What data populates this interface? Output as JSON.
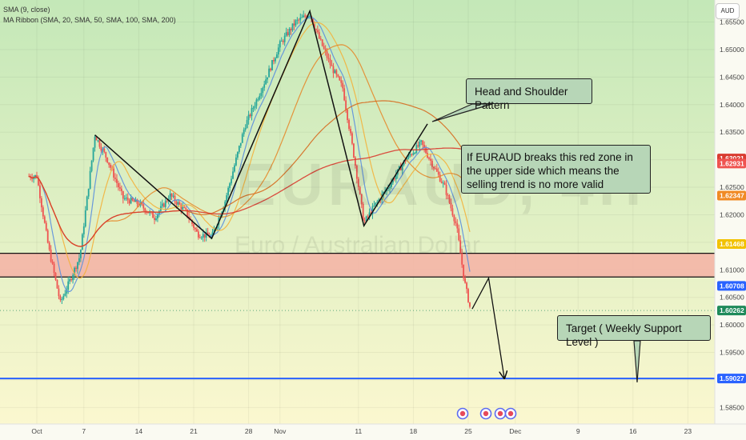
{
  "legend": {
    "sma": "SMA (9, close)",
    "ribbon": "MA Ribbon (SMA, 20, SMA, 50, SMA, 100, SMA, 200)"
  },
  "currency": "AUD",
  "watermark": {
    "symbol": "EURAUD, 4H",
    "name": "Euro / Australian Dollar"
  },
  "annotations": {
    "pattern": "Head and Shoulder Pattern",
    "note": "If EURAUD breaks this red zone in the upper side which means the selling trend is no more valid",
    "target": "Target ( Weekly Support Level )"
  },
  "colors": {
    "background_top": "#c4e8b8",
    "background_bottom": "#fdf8d0",
    "bull": "#26a69a",
    "bear": "#ef5350",
    "zone": "#f4b5a6",
    "support": "#2962ff",
    "sma9": "#5b8fde",
    "ma20": "#f3b13c",
    "ma50": "#e58a2c",
    "ma100": "#d66a1f",
    "ma200": "#d93b30"
  },
  "chart_data": {
    "type": "candlestick",
    "symbol": "EURAUD",
    "timeframe": "4H",
    "y_range": [
      1.582,
      1.659
    ],
    "y_ticks": [
      "1.65500",
      "1.65000",
      "1.64500",
      "1.64000",
      "1.63500",
      "1.63000",
      "1.62500",
      "1.62000",
      "1.61500",
      "1.61000",
      "1.60500",
      "1.60000",
      "1.59500",
      "1.59000",
      "1.58500"
    ],
    "x_ticks": [
      {
        "label": "Oct",
        "day": 1
      },
      {
        "label": "7",
        "day": 7
      },
      {
        "label": "14",
        "day": 14
      },
      {
        "label": "21",
        "day": 21
      },
      {
        "label": "28",
        "day": 28
      },
      {
        "label": "Nov",
        "day": 32
      },
      {
        "label": "11",
        "day": 42
      },
      {
        "label": "18",
        "day": 49
      },
      {
        "label": "25",
        "day": 56
      },
      {
        "label": "Dec",
        "day": 62
      },
      {
        "label": "9",
        "day": 70
      },
      {
        "label": "16",
        "day": 77
      },
      {
        "label": "23",
        "day": 84
      }
    ],
    "price_labels": [
      {
        "value": 1.63021,
        "text": "1.63021",
        "color": "#d93b30"
      },
      {
        "value": 1.62931,
        "text": "1.62931",
        "color": "#ef5350"
      },
      {
        "value": 1.62347,
        "text": "1.62347",
        "color": "#f08a24"
      },
      {
        "value": 1.61468,
        "text": "1.61468",
        "color": "#f2c200"
      },
      {
        "value": 1.60708,
        "text": "1.60708",
        "color": "#2962ff"
      },
      {
        "value": 1.60262,
        "text": "1.60262",
        "color": "#1e8a5a"
      },
      {
        "value": 1.59027,
        "text": "1.59027",
        "color": "#2962ff"
      }
    ],
    "zone": {
      "top": 1.613,
      "bottom": 1.6087
    },
    "support_level": 1.59027,
    "last_price": 1.60262,
    "pattern_points": [
      {
        "day": 8.4,
        "price": 1.6345
      },
      {
        "day": 23.3,
        "price": 1.6157
      },
      {
        "day": 35.8,
        "price": 1.657
      },
      {
        "day": 42.7,
        "price": 1.618
      },
      {
        "day": 50.8,
        "price": 1.6365
      }
    ],
    "projection_points": [
      {
        "day": 56.5,
        "price": 1.6029
      },
      {
        "day": 58.6,
        "price": 1.6085
      },
      {
        "day": 60.6,
        "price": 1.5903
      }
    ],
    "anchors": [
      {
        "day": 1.0,
        "price": 1.627
      },
      {
        "day": 2.5,
        "price": 1.614
      },
      {
        "day": 4.0,
        "price": 1.604
      },
      {
        "day": 5.2,
        "price": 1.608
      },
      {
        "day": 6.5,
        "price": 1.6125
      },
      {
        "day": 8.4,
        "price": 1.6345
      },
      {
        "day": 10.0,
        "price": 1.63
      },
      {
        "day": 12.0,
        "price": 1.623
      },
      {
        "day": 14.0,
        "price": 1.622
      },
      {
        "day": 16.0,
        "price": 1.6195
      },
      {
        "day": 18.0,
        "price": 1.6235
      },
      {
        "day": 20.0,
        "price": 1.6205
      },
      {
        "day": 21.5,
        "price": 1.6165
      },
      {
        "day": 23.3,
        "price": 1.616
      },
      {
        "day": 25.0,
        "price": 1.6225
      },
      {
        "day": 27.5,
        "price": 1.636
      },
      {
        "day": 30.0,
        "price": 1.644
      },
      {
        "day": 32.0,
        "price": 1.651
      },
      {
        "day": 34.0,
        "price": 1.655
      },
      {
        "day": 35.8,
        "price": 1.6565
      },
      {
        "day": 37.0,
        "price": 1.652
      },
      {
        "day": 38.5,
        "price": 1.647
      },
      {
        "day": 40.0,
        "price": 1.643
      },
      {
        "day": 41.5,
        "price": 1.63
      },
      {
        "day": 42.7,
        "price": 1.6185
      },
      {
        "day": 44.0,
        "price": 1.6215
      },
      {
        "day": 46.0,
        "price": 1.6255
      },
      {
        "day": 48.0,
        "price": 1.63
      },
      {
        "day": 50.0,
        "price": 1.633
      },
      {
        "day": 51.5,
        "price": 1.629
      },
      {
        "day": 53.0,
        "price": 1.625
      },
      {
        "day": 54.5,
        "price": 1.618
      },
      {
        "day": 55.5,
        "price": 1.608
      },
      {
        "day": 56.3,
        "price": 1.6026
      }
    ]
  }
}
